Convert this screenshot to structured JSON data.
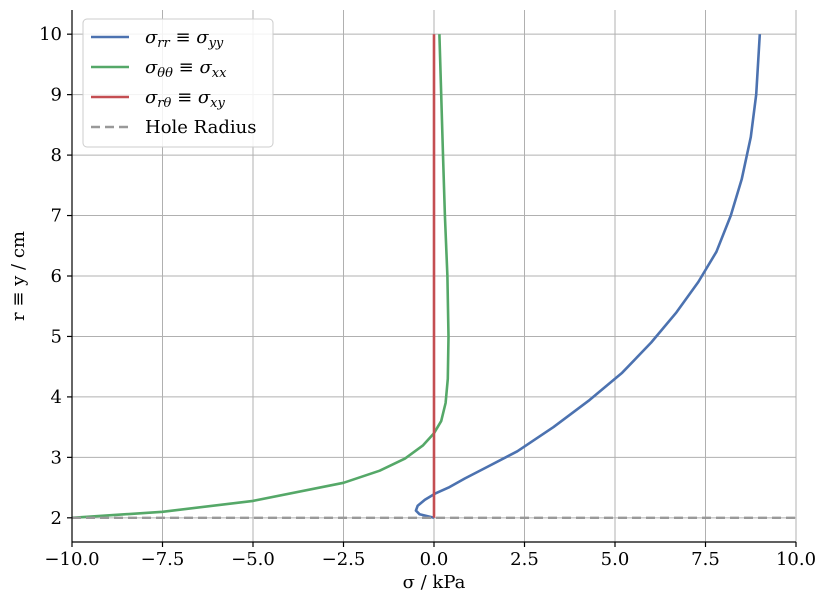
{
  "chart_data": {
    "type": "line",
    "title": "",
    "xlabel": "σ / kPa",
    "ylabel": "r ≡ y / cm",
    "xlim": [
      -10,
      10
    ],
    "ylim": [
      1.6,
      10.4
    ],
    "xticks": [
      -10,
      -7.5,
      -5,
      -2.5,
      0,
      2.5,
      5,
      7.5,
      10
    ],
    "xtick_labels": [
      "−10.0",
      "−7.5",
      "−5.0",
      "−2.5",
      "0.0",
      "2.5",
      "5.0",
      "7.5",
      "10.0"
    ],
    "yticks": [
      2,
      3,
      4,
      5,
      6,
      7,
      8,
      9,
      10
    ],
    "ytick_labels": [
      "2",
      "3",
      "4",
      "5",
      "6",
      "7",
      "8",
      "9",
      "10"
    ],
    "grid": true,
    "legend_position": "top-left",
    "series": [
      {
        "name": "σrr ≡ σyy",
        "name_main": "σ",
        "name_sub": "rr",
        "name_mid": " ≡ σ",
        "name_sub2": "yy",
        "color": "#4c72b0",
        "style": "solid",
        "points": [
          [
            0,
            2.0
          ],
          [
            -0.4,
            2.06
          ],
          [
            -0.5,
            2.12
          ],
          [
            -0.45,
            2.2
          ],
          [
            -0.25,
            2.3
          ],
          [
            0.03,
            2.4
          ],
          [
            0.4,
            2.5
          ],
          [
            0.85,
            2.65
          ],
          [
            1.5,
            2.85
          ],
          [
            2.3,
            3.1
          ],
          [
            3.3,
            3.5
          ],
          [
            4.3,
            3.95
          ],
          [
            5.2,
            4.4
          ],
          [
            6.0,
            4.9
          ],
          [
            6.7,
            5.4
          ],
          [
            7.3,
            5.9
          ],
          [
            7.8,
            6.4
          ],
          [
            8.2,
            7.0
          ],
          [
            8.5,
            7.6
          ],
          [
            8.75,
            8.3
          ],
          [
            8.9,
            9.0
          ],
          [
            9.0,
            10.0
          ]
        ]
      },
      {
        "name": "σθθ ≡ σxx",
        "name_main": "σ",
        "name_sub": "θθ",
        "name_mid": " ≡ σ",
        "name_sub2": "xx",
        "color": "#55a868",
        "style": "solid",
        "points": [
          [
            -10,
            2.0
          ],
          [
            -7.5,
            2.1
          ],
          [
            -5.0,
            2.28
          ],
          [
            -2.5,
            2.58
          ],
          [
            -1.5,
            2.78
          ],
          [
            -0.8,
            2.98
          ],
          [
            -0.3,
            3.2
          ],
          [
            0.0,
            3.4
          ],
          [
            0.2,
            3.6
          ],
          [
            0.32,
            3.9
          ],
          [
            0.38,
            4.3
          ],
          [
            0.4,
            5.0
          ],
          [
            0.37,
            6.0
          ],
          [
            0.3,
            7.0
          ],
          [
            0.25,
            8.0
          ],
          [
            0.2,
            9.0
          ],
          [
            0.15,
            10.0
          ]
        ]
      },
      {
        "name": "σrθ ≡ σxy",
        "name_main": "σ",
        "name_sub": "rθ",
        "name_mid": " ≡ σ",
        "name_sub2": "xy",
        "color": "#c44e52",
        "style": "solid",
        "points": [
          [
            0,
            2.0
          ],
          [
            0,
            10.0
          ]
        ]
      },
      {
        "name": "Hole Radius",
        "color": "#999999",
        "style": "dashed",
        "points": [
          [
            -10,
            2.0
          ],
          [
            10,
            2.0
          ]
        ]
      }
    ]
  }
}
